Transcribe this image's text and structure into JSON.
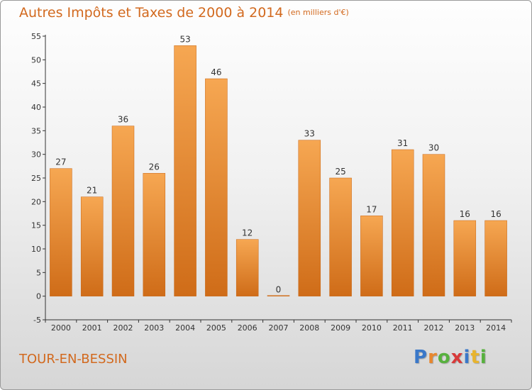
{
  "chart_data": {
    "type": "bar",
    "title": "Autres Impôts et Taxes de 2000 à 2014",
    "subtitle": "(en milliers d'€)",
    "categories": [
      "2000",
      "2001",
      "2002",
      "2003",
      "2004",
      "2005",
      "2006",
      "2007",
      "2008",
      "2009",
      "2010",
      "2011",
      "2012",
      "2013",
      "2014"
    ],
    "values": [
      27,
      21,
      36,
      26,
      53,
      46,
      12,
      0,
      33,
      25,
      17,
      31,
      30,
      16,
      16
    ],
    "ylim": [
      -5,
      55
    ],
    "yticks": [
      -5,
      0,
      5,
      10,
      15,
      20,
      25,
      30,
      35,
      40,
      45,
      50,
      55
    ],
    "grid": false,
    "bar_color": "#e8872e"
  },
  "commune": "TOUR-EN-BESSIN",
  "logo": {
    "letters": [
      "P",
      "r",
      "o",
      "x",
      "i",
      "t",
      "i"
    ],
    "colors": [
      "#3a78c9",
      "#e8872e",
      "#57b13e",
      "#d83a3a",
      "#3a78c9",
      "#e8b42e",
      "#57b13e"
    ]
  }
}
